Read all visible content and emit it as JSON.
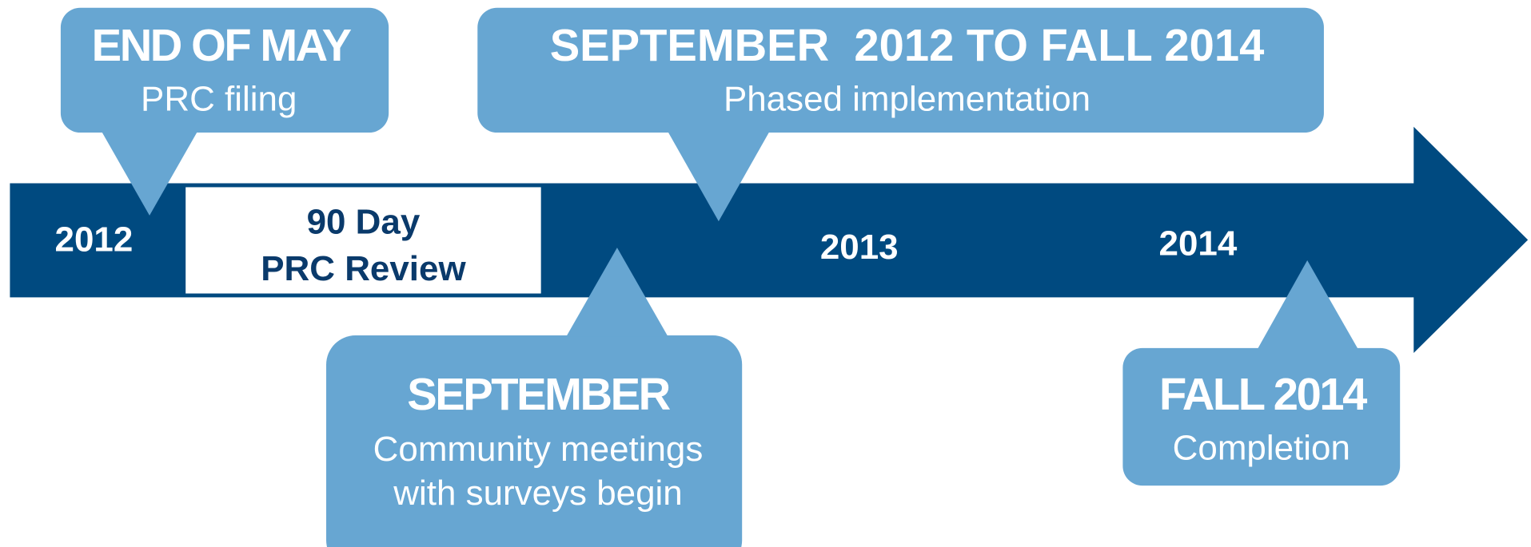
{
  "years": [
    "2012",
    "2013",
    "2014"
  ],
  "review": {
    "lines": [
      "90 Day",
      "PRC Review"
    ]
  },
  "callouts": [
    {
      "title": "END OF MAY",
      "lines": [
        "PRC filing"
      ]
    },
    {
      "title": "SEPTEMBER  2012 TO FALL 2014",
      "lines": [
        "Phased implementation"
      ]
    },
    {
      "title": "SEPTEMBER",
      "lines": [
        "Community meetings",
        "with surveys begin"
      ]
    },
    {
      "title": "FALL 2014",
      "lines": [
        "Completion"
      ]
    }
  ]
}
